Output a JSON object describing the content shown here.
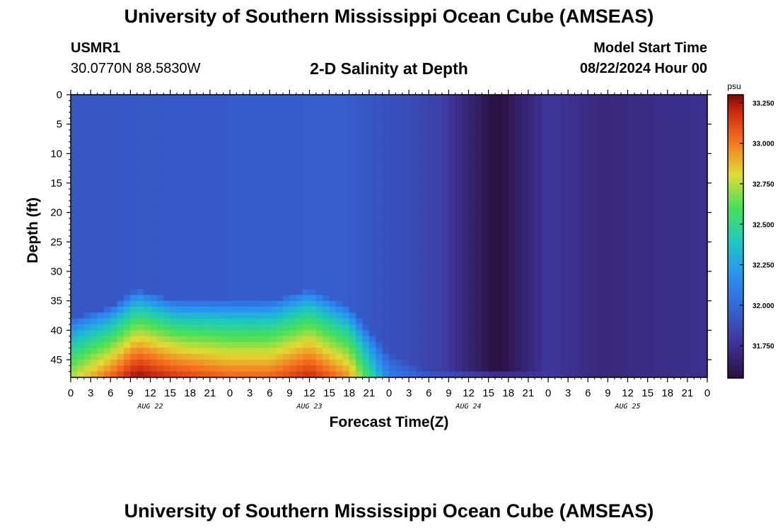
{
  "header": {
    "title": "University of Southern Mississippi Ocean Cube (AMSEAS)",
    "station": "USMR1",
    "coords": "30.0770N  88.5830W",
    "chart_title": "2-D Salinity at Depth",
    "model_label": "Model Start Time",
    "model_date": "08/22/2024 Hour 00"
  },
  "footer": {
    "title": "University of Southern Mississippi Ocean Cube (AMSEAS)"
  },
  "chart_data": {
    "type": "heatmap",
    "title": "2-D Salinity at Depth",
    "xlabel": "Forecast Time(Z)",
    "ylabel": "Depth (ft)",
    "x_tick_labels": [
      "0",
      "3",
      "6",
      "9",
      "12",
      "15",
      "18",
      "21",
      "0",
      "3",
      "6",
      "9",
      "12",
      "15",
      "18",
      "21",
      "0",
      "3",
      "6",
      "9",
      "12",
      "15",
      "18",
      "21",
      "0",
      "3",
      "6",
      "9",
      "12",
      "15",
      "18",
      "21",
      "0"
    ],
    "xlim_hours": [
      0,
      96
    ],
    "day_labels": [
      {
        "label": "AUG 22",
        "center_hour": 12
      },
      {
        "label": "AUG 23",
        "center_hour": 36
      },
      {
        "label": "AUG 24",
        "center_hour": 60
      },
      {
        "label": "AUG 25",
        "center_hour": 84
      }
    ],
    "y_ticks": [
      0,
      5,
      10,
      15,
      20,
      25,
      30,
      35,
      40,
      45
    ],
    "ylim": [
      0,
      48
    ],
    "y_inverted": true,
    "colorbar": {
      "unit": "psu",
      "range": [
        31.55,
        33.3
      ],
      "labels": [
        "33.250",
        "33.000",
        "32.750",
        "32.500",
        "32.250",
        "32.000",
        "31.750"
      ],
      "values": [
        33.25,
        33.0,
        32.75,
        32.5,
        32.25,
        32.0,
        31.75
      ]
    },
    "surface_salinity": [
      {
        "hour": 0,
        "value": 31.92
      },
      {
        "hour": 24,
        "value": 31.94
      },
      {
        "hour": 42,
        "value": 31.95
      },
      {
        "hour": 50,
        "value": 31.88
      },
      {
        "hour": 56,
        "value": 31.82
      },
      {
        "hour": 60,
        "value": 31.68
      },
      {
        "hour": 64,
        "value": 31.56
      },
      {
        "hour": 66,
        "value": 31.6
      },
      {
        "hour": 72,
        "value": 31.78
      },
      {
        "hour": 80,
        "value": 31.7
      },
      {
        "hour": 86,
        "value": 31.72
      },
      {
        "hour": 96,
        "value": 31.74
      }
    ],
    "bottom_salinity": [
      {
        "hour": 0,
        "value": 32.75
      },
      {
        "hour": 6,
        "value": 33.05
      },
      {
        "hour": 10,
        "value": 33.28
      },
      {
        "hour": 16,
        "value": 33.15
      },
      {
        "hour": 24,
        "value": 33.05
      },
      {
        "hour": 30,
        "value": 33.05
      },
      {
        "hour": 36,
        "value": 33.2
      },
      {
        "hour": 42,
        "value": 32.95
      },
      {
        "hour": 48,
        "value": 32.1
      },
      {
        "hour": 54,
        "value": 31.95
      },
      {
        "hour": 64,
        "value": 31.93
      },
      {
        "hour": 72,
        "value": 31.9
      },
      {
        "hour": 82,
        "value": 31.7
      },
      {
        "hour": 96,
        "value": 31.72
      }
    ],
    "halocline_top_depth_ft": [
      {
        "hour": 0,
        "value": 38
      },
      {
        "hour": 6,
        "value": 36
      },
      {
        "hour": 10,
        "value": 33
      },
      {
        "hour": 16,
        "value": 35
      },
      {
        "hour": 24,
        "value": 35
      },
      {
        "hour": 30,
        "value": 35
      },
      {
        "hour": 36,
        "value": 33
      },
      {
        "hour": 42,
        "value": 36
      },
      {
        "hour": 48,
        "value": 44
      },
      {
        "hour": 54,
        "value": 47
      },
      {
        "hour": 96,
        "value": 48
      }
    ]
  }
}
